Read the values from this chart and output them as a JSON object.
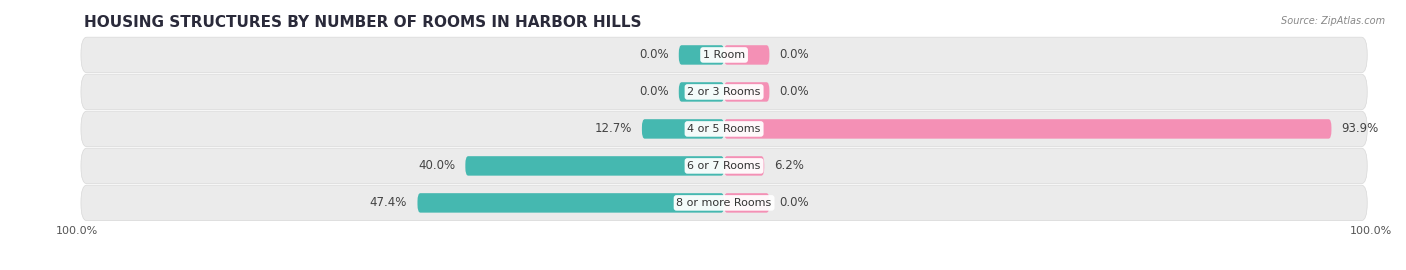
{
  "title": "HOUSING STRUCTURES BY NUMBER OF ROOMS IN HARBOR HILLS",
  "source": "Source: ZipAtlas.com",
  "categories": [
    "1 Room",
    "2 or 3 Rooms",
    "4 or 5 Rooms",
    "6 or 7 Rooms",
    "8 or more Rooms"
  ],
  "owner_values": [
    0.0,
    0.0,
    12.7,
    40.0,
    47.4
  ],
  "renter_values": [
    0.0,
    0.0,
    93.9,
    6.2,
    0.0
  ],
  "owner_color": "#45b8b0",
  "renter_color": "#f490b5",
  "row_bg_color": "#ebebeb",
  "title_fontsize": 11,
  "label_fontsize": 8.5,
  "category_fontsize": 8.0,
  "source_fontsize": 7.0,
  "axis_label_fontsize": 8.0,
  "max_val": 100.0,
  "min_bar_nub": 3.5,
  "fig_bg_color": "#ffffff"
}
